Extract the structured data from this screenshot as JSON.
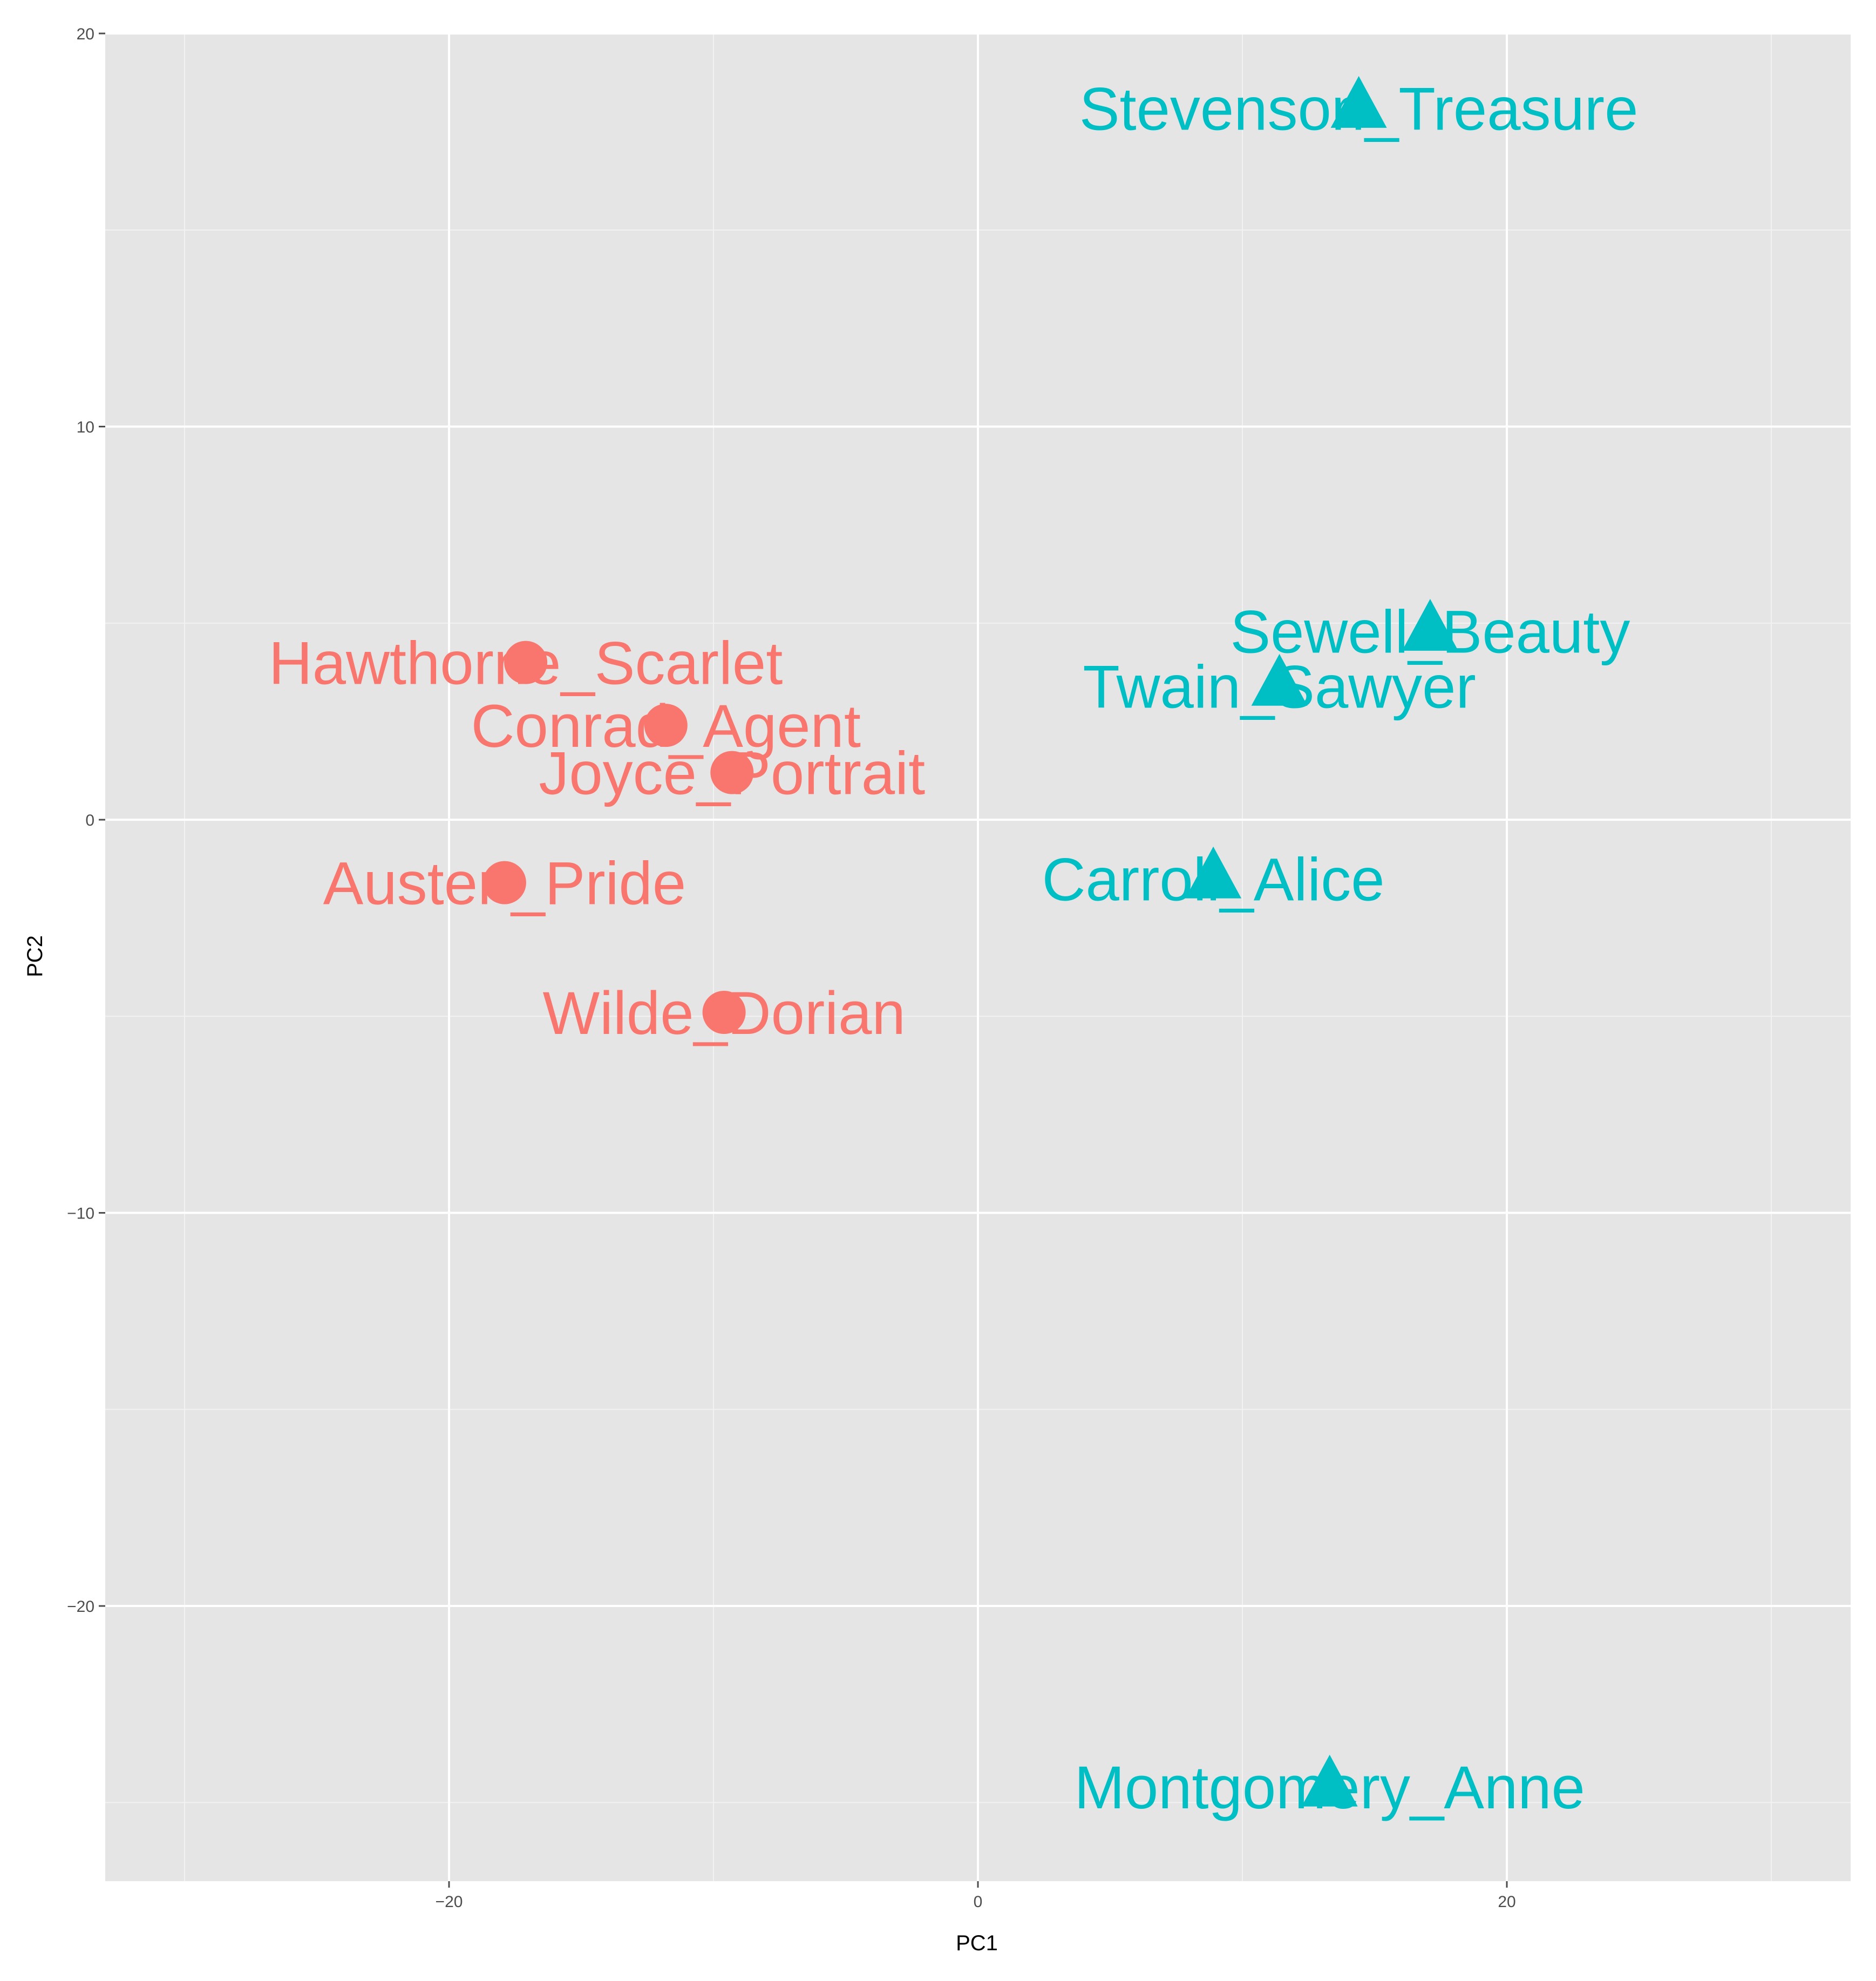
{
  "chart_data": {
    "type": "scatter",
    "xlabel": "PC1",
    "ylabel": "PC2",
    "xlim": [
      -33,
      33
    ],
    "ylim": [
      -27,
      20
    ],
    "x_ticks": [
      -20,
      0,
      20
    ],
    "x_tick_labels": [
      "−20",
      "0",
      "20"
    ],
    "y_ticks": [
      -20,
      -10,
      0,
      10,
      20
    ],
    "y_tick_labels": [
      "−20",
      "−10",
      "0",
      "10",
      "20"
    ],
    "grid": true,
    "panel_background": "#e5e5e5",
    "series": [
      {
        "color": "#f8766d",
        "marker": "circle",
        "points": [
          {
            "label": "Hawthorne_Scarlet",
            "x": -17.1,
            "y": 4.0
          },
          {
            "label": "Conrad_Agent",
            "x": -11.8,
            "y": 2.4
          },
          {
            "label": "Joyce_Portrait",
            "x": -9.3,
            "y": 1.2
          },
          {
            "label": "Austen_Pride",
            "x": -17.9,
            "y": -1.6
          },
          {
            "label": "Wilde_Dorian",
            "x": -9.6,
            "y": -4.9
          }
        ]
      },
      {
        "color": "#00bfc4",
        "marker": "triangle",
        "points": [
          {
            "label": "Stevenson_Treasure",
            "x": 14.4,
            "y": 18.1
          },
          {
            "label": "Sewell_Beauty",
            "x": 17.1,
            "y": 4.8
          },
          {
            "label": "Twain_Sawyer",
            "x": 11.4,
            "y": 3.4
          },
          {
            "label": "Carroll_Alice",
            "x": 8.9,
            "y": -1.5
          },
          {
            "label": "Montgomery_Anne",
            "x": 13.3,
            "y": -24.6
          }
        ]
      }
    ]
  }
}
